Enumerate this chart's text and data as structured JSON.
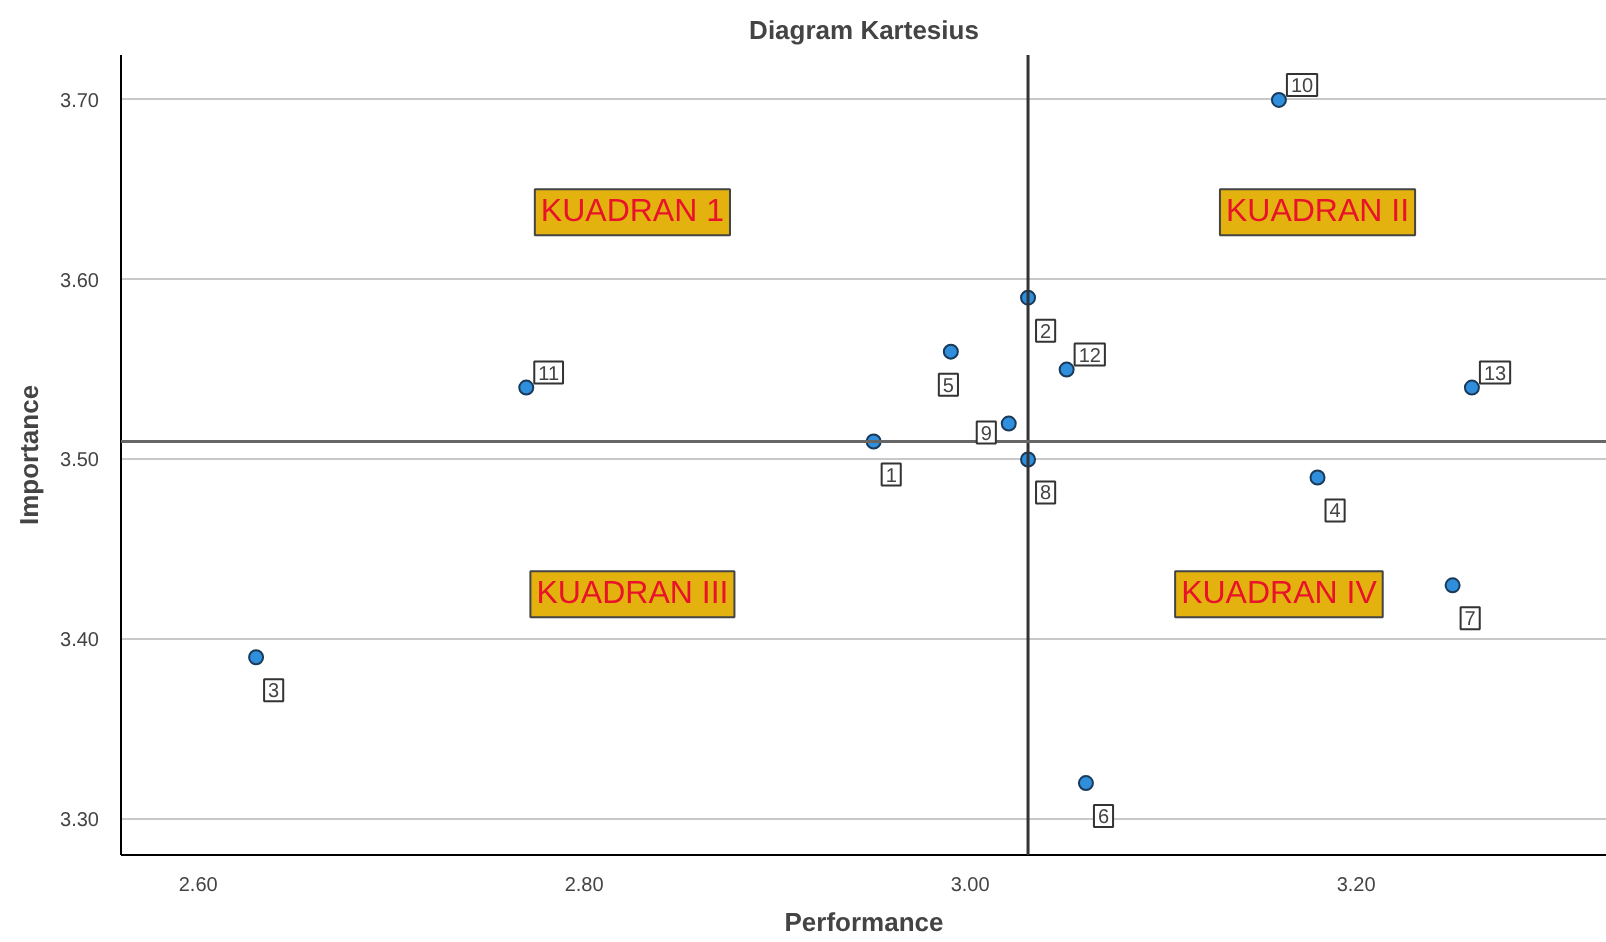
{
  "chart_data": {
    "type": "scatter",
    "title": "Diagram Kartesius",
    "xlabel": "Performance",
    "ylabel": "Importance",
    "x": [
      2.95,
      3.03,
      2.63,
      3.18,
      2.99,
      3.06,
      3.25,
      3.03,
      3.02,
      3.16,
      2.77,
      3.05,
      3.26
    ],
    "series": [
      {
        "color": "#2f8fdc",
        "values": [
          3.51,
          3.59,
          3.39,
          3.49,
          3.56,
          3.32,
          3.43,
          3.5,
          3.52,
          3.7,
          3.54,
          3.55,
          3.54
        ]
      }
    ],
    "xlim": [
      2.56,
      3.33
    ],
    "ylim": [
      3.28,
      3.725
    ],
    "xticks": [
      {
        "value": 2.6,
        "label": "2.60"
      },
      {
        "value": 2.8,
        "label": "2.80"
      },
      {
        "value": 3.0,
        "label": "3.00"
      },
      {
        "value": 3.2,
        "label": "3.20"
      }
    ],
    "yticks": [
      {
        "value": 3.3,
        "label": "3.30"
      },
      {
        "value": 3.4,
        "label": "3.40"
      },
      {
        "value": 3.5,
        "label": "3.50"
      },
      {
        "value": 3.6,
        "label": "3.60"
      },
      {
        "value": 3.7,
        "label": "3.70"
      }
    ],
    "ref_lines": [
      {
        "axis": "x",
        "value": 3.03,
        "color": "#333333"
      },
      {
        "axis": "y",
        "value": 3.51,
        "color": "#666666"
      }
    ],
    "annotations": [
      "KUADRAN 1",
      "KUADRAN II",
      "KUADRAN III",
      "KUADRAN IV",
      {
        "text": "1",
        "x": 2.95,
        "y": 3.51
      },
      {
        "text": "2",
        "x": 3.03,
        "y": 3.59
      },
      {
        "text": "3",
        "x": 2.63,
        "y": 3.39
      },
      {
        "text": "4",
        "x": 3.18,
        "y": 3.49
      },
      {
        "text": "5",
        "x": 2.99,
        "y": 3.56
      },
      {
        "text": "6",
        "x": 3.06,
        "y": 3.32
      },
      {
        "text": "7",
        "x": 3.25,
        "y": 3.43
      },
      {
        "text": "8",
        "x": 3.03,
        "y": 3.5
      },
      {
        "text": "9",
        "x": 3.02,
        "y": 3.52
      },
      {
        "text": "10",
        "x": 3.16,
        "y": 3.7
      },
      {
        "text": "11",
        "x": 2.77,
        "y": 3.54
      },
      {
        "text": "12",
        "x": 3.05,
        "y": 3.55
      },
      {
        "text": "13",
        "x": 3.26,
        "y": 3.54
      }
    ],
    "grid": "y",
    "marker": "circle"
  }
}
